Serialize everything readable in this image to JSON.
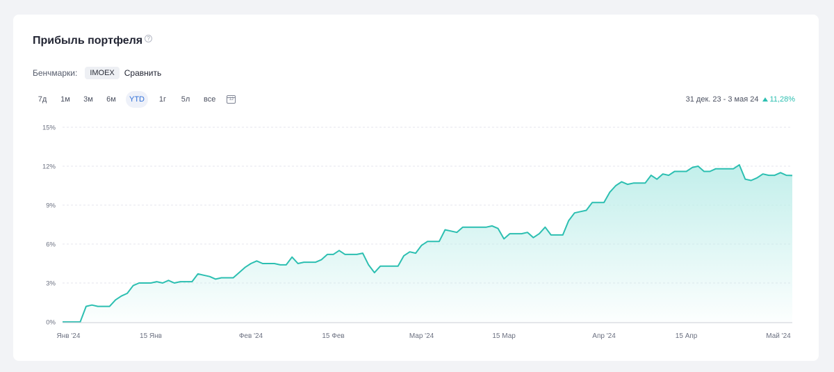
{
  "card": {
    "title": "Прибыль портфеля",
    "help_icon": "question-circle-icon",
    "help_glyph": "?"
  },
  "benchmarks": {
    "label": "Бенчмарки:",
    "chip": "IMOEX",
    "compare": "Сравнить"
  },
  "periods": [
    {
      "label": "7д",
      "active": false
    },
    {
      "label": "1м",
      "active": false
    },
    {
      "label": "3м",
      "active": false
    },
    {
      "label": "6м",
      "active": false
    },
    {
      "label": "YTD",
      "active": true
    },
    {
      "label": "1г",
      "active": false
    },
    {
      "label": "5л",
      "active": false
    },
    {
      "label": "все",
      "active": false
    }
  ],
  "calendar": {
    "icon": "calendar-icon",
    "glyph": "12"
  },
  "range": {
    "text": "31 дек. 23 - 3 мая 24",
    "change": "11,28%",
    "direction_icon": "triangle-up-icon"
  },
  "colors": {
    "line": "#2cbfb1",
    "fill_top": "#bfeeea",
    "grid": "#e4e6ec",
    "axis_text": "#6b7080"
  },
  "chart_data": {
    "type": "area",
    "x_axis": "date",
    "y_unit": "%",
    "ylim": [
      0,
      15
    ],
    "yticks": [
      {
        "value": 0,
        "label": "0%"
      },
      {
        "value": 3,
        "label": "3%"
      },
      {
        "value": 6,
        "label": "6%"
      },
      {
        "value": 9,
        "label": "9%"
      },
      {
        "value": 12,
        "label": "12%"
      },
      {
        "value": 15,
        "label": "15%"
      }
    ],
    "xlim": [
      "2023-12-31",
      "2024-05-03"
    ],
    "xticks": [
      {
        "date": "2024-01-01",
        "label": "Янв '24"
      },
      {
        "date": "2024-01-15",
        "label": "15 Янв"
      },
      {
        "date": "2024-02-01",
        "label": "Фев '24"
      },
      {
        "date": "2024-02-15",
        "label": "15 Фев"
      },
      {
        "date": "2024-03-01",
        "label": "Мар '24"
      },
      {
        "date": "2024-03-15",
        "label": "15 Мар"
      },
      {
        "date": "2024-04-01",
        "label": "Апр '24"
      },
      {
        "date": "2024-04-15",
        "label": "15 Апр"
      },
      {
        "date": "2024-05-01",
        "label": "Май '24"
      }
    ],
    "grid": "horizontal-dashed",
    "legend": "none",
    "points": [
      [
        "2023-12-31",
        0.0
      ],
      [
        "2024-01-03",
        0.0
      ],
      [
        "2024-01-04",
        1.2
      ],
      [
        "2024-01-05",
        1.3
      ],
      [
        "2024-01-06",
        1.2
      ],
      [
        "2024-01-08",
        1.2
      ],
      [
        "2024-01-09",
        1.7
      ],
      [
        "2024-01-10",
        2.0
      ],
      [
        "2024-01-11",
        2.2
      ],
      [
        "2024-01-12",
        2.8
      ],
      [
        "2024-01-13",
        3.0
      ],
      [
        "2024-01-15",
        3.0
      ],
      [
        "2024-01-16",
        3.1
      ],
      [
        "2024-01-17",
        3.0
      ],
      [
        "2024-01-18",
        3.2
      ],
      [
        "2024-01-19",
        3.0
      ],
      [
        "2024-01-20",
        3.1
      ],
      [
        "2024-01-22",
        3.1
      ],
      [
        "2024-01-23",
        3.7
      ],
      [
        "2024-01-24",
        3.6
      ],
      [
        "2024-01-25",
        3.5
      ],
      [
        "2024-01-26",
        3.3
      ],
      [
        "2024-01-27",
        3.4
      ],
      [
        "2024-01-29",
        3.4
      ],
      [
        "2024-01-30",
        3.8
      ],
      [
        "2024-01-31",
        4.2
      ],
      [
        "2024-02-01",
        4.5
      ],
      [
        "2024-02-02",
        4.7
      ],
      [
        "2024-02-03",
        4.5
      ],
      [
        "2024-02-05",
        4.5
      ],
      [
        "2024-02-06",
        4.4
      ],
      [
        "2024-02-07",
        4.4
      ],
      [
        "2024-02-08",
        5.0
      ],
      [
        "2024-02-09",
        4.5
      ],
      [
        "2024-02-10",
        4.6
      ],
      [
        "2024-02-12",
        4.6
      ],
      [
        "2024-02-13",
        4.8
      ],
      [
        "2024-02-14",
        5.2
      ],
      [
        "2024-02-15",
        5.2
      ],
      [
        "2024-02-16",
        5.5
      ],
      [
        "2024-02-17",
        5.2
      ],
      [
        "2024-02-19",
        5.2
      ],
      [
        "2024-02-20",
        5.3
      ],
      [
        "2024-02-21",
        4.4
      ],
      [
        "2024-02-22",
        3.8
      ],
      [
        "2024-02-23",
        4.3
      ],
      [
        "2024-02-24",
        4.3
      ],
      [
        "2024-02-26",
        4.3
      ],
      [
        "2024-02-27",
        5.1
      ],
      [
        "2024-02-28",
        5.4
      ],
      [
        "2024-02-29",
        5.3
      ],
      [
        "2024-03-01",
        5.9
      ],
      [
        "2024-03-02",
        6.2
      ],
      [
        "2024-03-04",
        6.2
      ],
      [
        "2024-03-05",
        7.1
      ],
      [
        "2024-03-06",
        7.0
      ],
      [
        "2024-03-07",
        6.9
      ],
      [
        "2024-03-08",
        7.3
      ],
      [
        "2024-03-10",
        7.3
      ],
      [
        "2024-03-12",
        7.3
      ],
      [
        "2024-03-13",
        7.4
      ],
      [
        "2024-03-14",
        7.2
      ],
      [
        "2024-03-15",
        6.4
      ],
      [
        "2024-03-16",
        6.8
      ],
      [
        "2024-03-18",
        6.8
      ],
      [
        "2024-03-19",
        6.9
      ],
      [
        "2024-03-20",
        6.5
      ],
      [
        "2024-03-21",
        6.8
      ],
      [
        "2024-03-22",
        7.3
      ],
      [
        "2024-03-23",
        6.7
      ],
      [
        "2024-03-25",
        6.7
      ],
      [
        "2024-03-26",
        7.8
      ],
      [
        "2024-03-27",
        8.4
      ],
      [
        "2024-03-28",
        8.5
      ],
      [
        "2024-03-29",
        8.6
      ],
      [
        "2024-03-30",
        9.2
      ],
      [
        "2024-04-01",
        9.2
      ],
      [
        "2024-04-02",
        10.0
      ],
      [
        "2024-04-03",
        10.5
      ],
      [
        "2024-04-04",
        10.8
      ],
      [
        "2024-04-05",
        10.6
      ],
      [
        "2024-04-06",
        10.7
      ],
      [
        "2024-04-08",
        10.7
      ],
      [
        "2024-04-09",
        11.3
      ],
      [
        "2024-04-10",
        11.0
      ],
      [
        "2024-04-11",
        11.4
      ],
      [
        "2024-04-12",
        11.3
      ],
      [
        "2024-04-13",
        11.6
      ],
      [
        "2024-04-15",
        11.6
      ],
      [
        "2024-04-16",
        11.9
      ],
      [
        "2024-04-17",
        12.0
      ],
      [
        "2024-04-18",
        11.6
      ],
      [
        "2024-04-19",
        11.6
      ],
      [
        "2024-04-20",
        11.8
      ],
      [
        "2024-04-22",
        11.8
      ],
      [
        "2024-04-23",
        11.8
      ],
      [
        "2024-04-24",
        12.1
      ],
      [
        "2024-04-25",
        11.0
      ],
      [
        "2024-04-26",
        10.9
      ],
      [
        "2024-04-27",
        11.1
      ],
      [
        "2024-04-28",
        11.4
      ],
      [
        "2024-04-29",
        11.3
      ],
      [
        "2024-04-30",
        11.3
      ],
      [
        "2024-05-01",
        11.5
      ],
      [
        "2024-05-02",
        11.3
      ],
      [
        "2024-05-03",
        11.28
      ]
    ]
  }
}
